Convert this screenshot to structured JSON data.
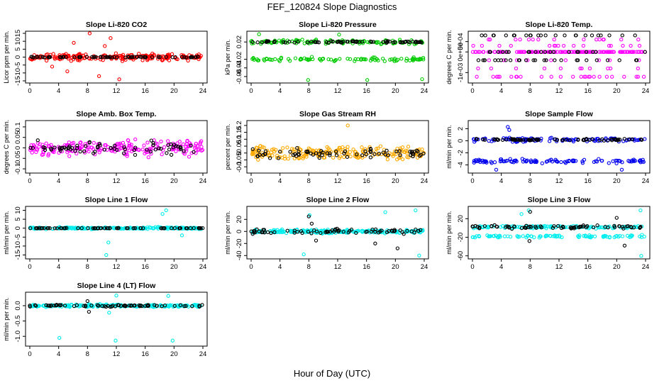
{
  "figure": {
    "title": "FEF_120824  Slope Diagnostics",
    "xlabel": "Hour of Day (UTC)"
  },
  "chart_data": [
    {
      "type": "scatter",
      "title": "Slope Li-820 CO2",
      "ylabel": "Licor ppm per min.",
      "xlim": [
        0,
        24
      ],
      "ylim": [
        -15,
        15
      ],
      "xticks": [
        "0",
        "4",
        "8",
        "12",
        "16",
        "20",
        "24"
      ],
      "yticks": [
        -15,
        -10,
        -5,
        0,
        5,
        10,
        15
      ],
      "series": [
        {
          "color": "#ff0000",
          "center": 0,
          "spread": 3,
          "outliers": [
            [
              8.3,
              15
            ],
            [
              11.2,
              12
            ],
            [
              6.1,
              9
            ],
            [
              12.4,
              -14
            ],
            [
              9.6,
              -12
            ],
            [
              5.2,
              -9
            ],
            [
              3.1,
              -6
            ],
            [
              10.4,
              7
            ]
          ]
        },
        {
          "color": "#000000",
          "center": 0,
          "spread": 0.4,
          "outliers": []
        }
      ]
    },
    {
      "type": "scatter",
      "title": "Slope Li-820 Pressure",
      "ylabel": "kPa per min.",
      "xlim": [
        0,
        24
      ],
      "ylim": [
        -0.07,
        0.04
      ],
      "xticks": [
        "0",
        "4",
        "8",
        "12",
        "16",
        "20",
        "24"
      ],
      "yticks": [
        -0.06,
        -0.04,
        -0.02,
        0.02
      ],
      "series": [
        {
          "color": "#00cc00",
          "bands": [
            0.02,
            -0.02
          ],
          "spread": 0.007,
          "outliers": [
            [
              7.9,
              -0.068
            ],
            [
              16.1,
              -0.068
            ],
            [
              23.7,
              -0.066
            ],
            [
              1.1,
              0.038
            ],
            [
              12.2,
              0.037
            ]
          ]
        },
        {
          "color": "#000000",
          "bands": [
            0.02
          ],
          "spread": 0.003,
          "outliers": []
        }
      ]
    },
    {
      "type": "scatter",
      "title": "Slope Li-820 Temp.",
      "ylabel": "degrees C per min.",
      "xlim": [
        0,
        24
      ],
      "ylim": [
        -0.0014,
        0.0009
      ],
      "xticks": [
        "0",
        "4",
        "8",
        "12",
        "16",
        "20",
        "24"
      ],
      "yticks_text": [
        "-1e-03",
        "0e+00",
        "5e-04"
      ],
      "yticks": [
        -0.001,
        0,
        0.0005
      ],
      "series": [
        {
          "color": "#ff00ff",
          "levels": [
            0.0006,
            0.0003,
            0,
            -0.0004,
            -0.0008,
            -0.0012
          ],
          "outliers": []
        },
        {
          "color": "#000000",
          "levels": [
            0,
            -0.0004,
            0.0008
          ],
          "outliers": []
        }
      ]
    },
    {
      "type": "scatter",
      "title": "Slope Amb. Box Temp.",
      "ylabel": "degrees C per min.",
      "xlim": [
        0,
        24
      ],
      "ylim": [
        -0.11,
        0.12
      ],
      "xticks": [
        "0",
        "4",
        "8",
        "12",
        "16",
        "20",
        "24"
      ],
      "yticks": [
        -0.1,
        -0.05,
        0,
        0.05,
        0.1
      ],
      "series": [
        {
          "color": "#ff00ff",
          "center": 0,
          "spread": 0.05,
          "outliers": []
        },
        {
          "color": "#000000",
          "center": 0,
          "spread": 0.04,
          "outliers": []
        }
      ]
    },
    {
      "type": "scatter",
      "title": "Slope Gas Stream RH",
      "ylabel": "percent per min.",
      "xlim": [
        0,
        24
      ],
      "ylim": [
        -0.13,
        0.22
      ],
      "xticks": [
        "0",
        "4",
        "8",
        "12",
        "16",
        "20",
        "24"
      ],
      "yticks": [
        -0.1,
        -0.05,
        0,
        0.05,
        0.1,
        0.15,
        0.2
      ],
      "series": [
        {
          "color": "#ffaa00",
          "center": 0,
          "spread": 0.07,
          "outliers": [
            [
              13.4,
              0.2
            ]
          ]
        },
        {
          "color": "#000000",
          "center": 0,
          "spread": 0.05,
          "outliers": []
        }
      ]
    },
    {
      "type": "scatter",
      "title": "Slope Sample Flow",
      "ylabel": "ml/min per min.",
      "xlim": [
        0,
        24
      ],
      "ylim": [
        -5,
        3
      ],
      "xticks": [
        "0",
        "4",
        "8",
        "12",
        "16",
        "20",
        "24"
      ],
      "yticks": [
        -4,
        -2,
        0,
        2
      ],
      "series": [
        {
          "color": "#0000ee",
          "bands": [
            0.2,
            -3.4
          ],
          "spread": 0.5,
          "outliers": [
            [
              4.9,
              2.3
            ],
            [
              5.1,
              1.8
            ],
            [
              3.3,
              -4.8
            ],
            [
              20.7,
              -4.8
            ]
          ]
        },
        {
          "color": "#000000",
          "bands": [
            0.2
          ],
          "spread": 0.2,
          "outliers": []
        }
      ]
    },
    {
      "type": "scatter",
      "title": "Slope Line 1 Flow",
      "ylabel": "ml/min per min.",
      "xlim": [
        0,
        24
      ],
      "ylim": [
        -16,
        11
      ],
      "xticks": [
        "0",
        "4",
        "8",
        "12",
        "16",
        "20",
        "24"
      ],
      "yticks": [
        -15,
        -10,
        -5,
        0,
        5,
        10
      ],
      "series": [
        {
          "color": "#00eeee",
          "center": 0,
          "spread": 0.8,
          "outliers": [
            [
              10.6,
              -15
            ],
            [
              10.9,
              -8
            ],
            [
              18.4,
              8
            ],
            [
              18.9,
              10
            ],
            [
              21.1,
              -4
            ]
          ]
        },
        {
          "color": "#000000",
          "center": 0,
          "spread": 0.1,
          "outliers": []
        }
      ]
    },
    {
      "type": "scatter",
      "title": "Slope Line 2 Flow",
      "ylabel": "ml/min per min.",
      "xlim": [
        0,
        24
      ],
      "ylim": [
        -42,
        38
      ],
      "xticks": [
        "0",
        "4",
        "8",
        "12",
        "16",
        "20",
        "24"
      ],
      "yticks": [
        -40,
        -20,
        0,
        20
      ],
      "series": [
        {
          "color": "#00eeee",
          "center": 0,
          "spread": 4,
          "outliers": [
            [
              7.3,
              -38
            ],
            [
              8.1,
              27
            ],
            [
              18.6,
              32
            ],
            [
              23.3,
              -40
            ],
            [
              22.8,
              35
            ]
          ]
        },
        {
          "color": "#000000",
          "center": 0,
          "spread": 6,
          "outliers": [
            [
              8,
              25
            ],
            [
              8.4,
              13
            ],
            [
              9,
              -15
            ],
            [
              17.2,
              -20
            ],
            [
              20.3,
              -28
            ]
          ]
        }
      ]
    },
    {
      "type": "scatter",
      "title": "Slope Line 3 Flow",
      "ylabel": "ml/min per min.",
      "xlim": [
        0,
        24
      ],
      "ylim": [
        -62,
        42
      ],
      "xticks": [
        "0",
        "4",
        "8",
        "12",
        "16",
        "20",
        "24"
      ],
      "yticks": [
        -60,
        -20,
        20
      ],
      "series": [
        {
          "color": "#00eeee",
          "bands": [
            2,
            -18
          ],
          "spread": 4,
          "outliers": [
            [
              7.8,
              38
            ],
            [
              6.8,
              30
            ],
            [
              23.4,
              -60
            ],
            [
              23.3,
              38
            ]
          ]
        },
        {
          "color": "#000000",
          "bands": [
            2
          ],
          "spread": 5,
          "outliers": [
            [
              8,
              35
            ],
            [
              7.9,
              -28
            ],
            [
              20,
              22
            ],
            [
              21.1,
              -38
            ]
          ]
        }
      ]
    },
    {
      "type": "scatter",
      "title": "Slope Line 4 (LT) Flow",
      "ylabel": "ml/min per min.",
      "xlim": [
        0,
        24
      ],
      "ylim": [
        -1.25,
        0.37
      ],
      "xticks": [
        "0",
        "4",
        "8",
        "12",
        "16",
        "20",
        "24"
      ],
      "yticks": [
        -1.0,
        -0.5,
        0.0
      ],
      "yticks_text": [
        "-1.0",
        "-0.5",
        "0.0"
      ],
      "series": [
        {
          "color": "#00eeee",
          "center": 0,
          "spread": 0.06,
          "outliers": [
            [
              4.1,
              -1.05
            ],
            [
              11.9,
              -1.14
            ],
            [
              19.8,
              -1.14
            ],
            [
              12,
              0.33
            ],
            [
              19.2,
              0.32
            ],
            [
              11,
              -0.23
            ]
          ]
        },
        {
          "color": "#000000",
          "center": 0,
          "spread": 0.05,
          "outliers": [
            [
              8,
              0.15
            ],
            [
              8.2,
              -0.2
            ]
          ]
        }
      ]
    }
  ]
}
